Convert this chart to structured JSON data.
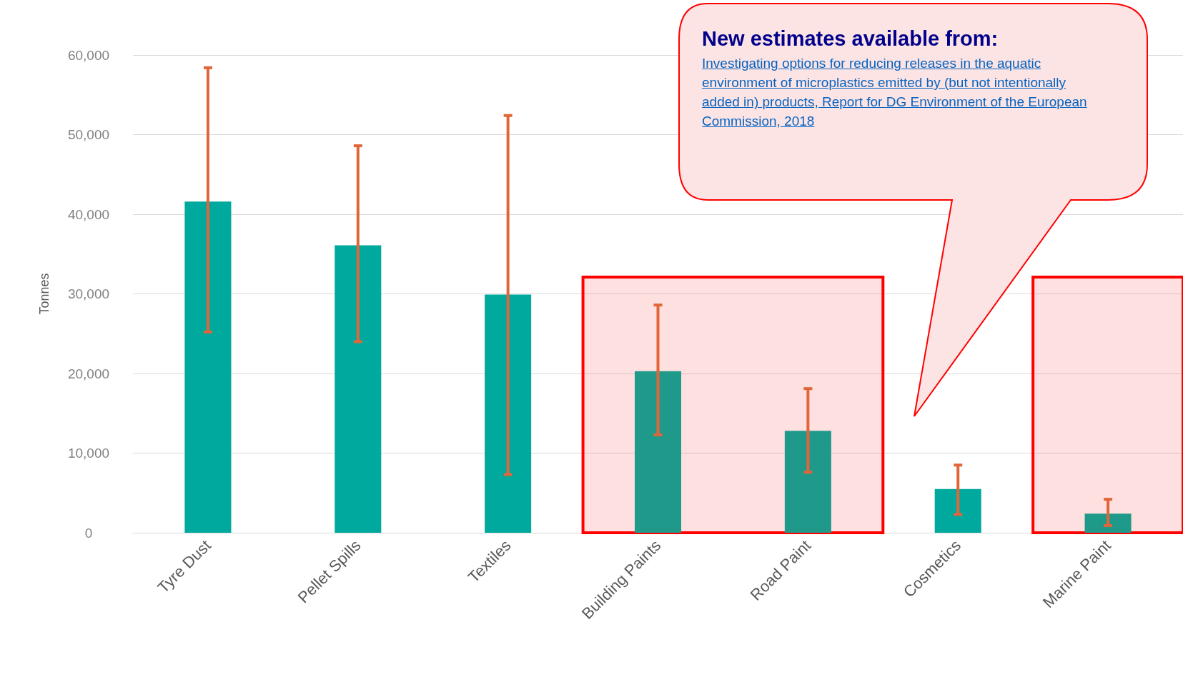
{
  "chart_data": {
    "type": "bar",
    "ylabel": "Tonnes",
    "categories": [
      "Tyre Dust",
      "Pellet Spills",
      "Textiles",
      "Building Paints",
      "Road Paint",
      "Cosmetics",
      "Marine Paint"
    ],
    "values": [
      41600,
      36100,
      29900,
      20300,
      12800,
      5500,
      2400
    ],
    "colors": [
      "#00a99d",
      "#00a99d",
      "#00a99d",
      "#1f9a8a",
      "#1f9a8a",
      "#00a99d",
      "#1f9a8a"
    ],
    "errors": [
      [
        25200,
        58400
      ],
      [
        24000,
        48600
      ],
      [
        7300,
        52400
      ],
      [
        12300,
        28600
      ],
      [
        7600,
        18100
      ],
      [
        2300,
        8500
      ],
      [
        900,
        4200
      ]
    ],
    "ylim": [
      0,
      60000
    ],
    "yticks": [
      {
        "value": 0,
        "label": "0"
      },
      {
        "value": 10000,
        "label": "10,000"
      },
      {
        "value": 20000,
        "label": "20,000"
      },
      {
        "value": 30000,
        "label": "30,000"
      },
      {
        "value": 40000,
        "label": "40,000"
      },
      {
        "value": 50000,
        "label": "50,000"
      },
      {
        "value": 60000,
        "label": "60,000"
      }
    ],
    "grid": "y",
    "bands": [
      {
        "axis": "x",
        "from": "Building Paints",
        "to": "Road Paint",
        "color": "#ff0000"
      },
      {
        "axis": "x",
        "from": "Marine Paint",
        "to": "Marine Paint",
        "color": "#ff0000"
      }
    ],
    "annotations": [
      "New estimates available from:",
      "Investigating options for reducing releases in the aquatic environment of microplastics emitted by (but not intentionally added in) products, Report for DG Environment of the European Commission, 2018"
    ]
  }
}
